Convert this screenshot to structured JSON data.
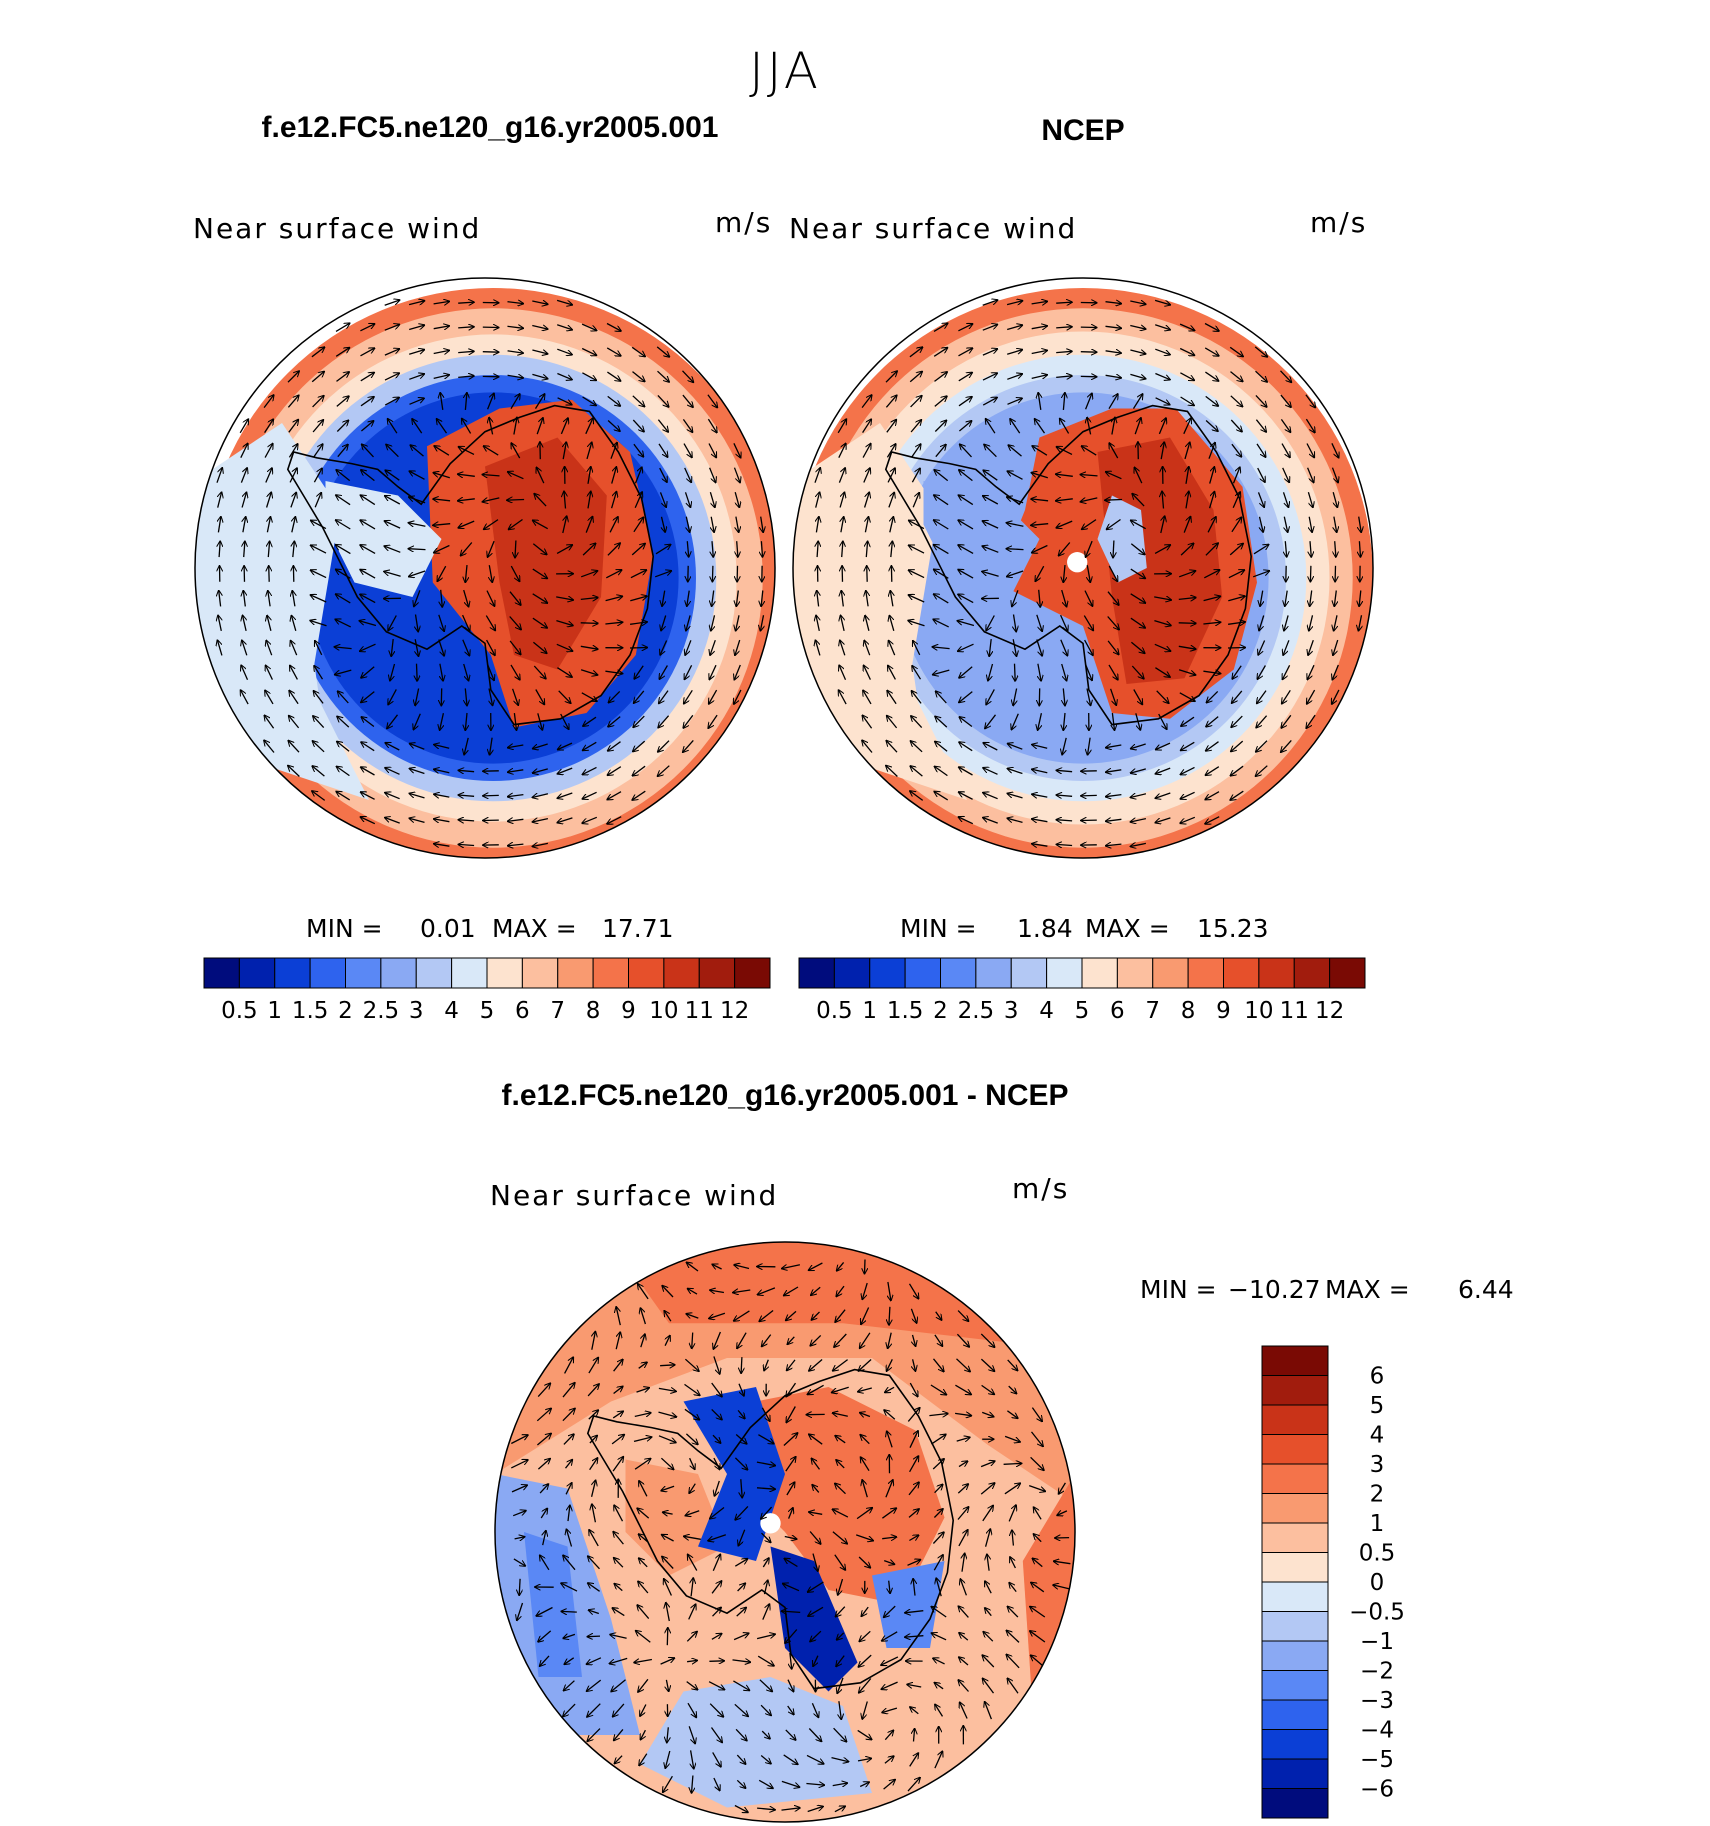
{
  "figure": {
    "season": "JJA",
    "model_title": "f.e12.FC5.ne120_g16.yr2005.001",
    "obs_title": "NCEP",
    "diff_title": "f.e12.FC5.ne120_g16.yr2005.001 - NCEP"
  },
  "panels": [
    {
      "id": "model",
      "variable": "Near surface wind",
      "units": "m/s",
      "stats": {
        "min_label": "MIN =",
        "min": "0.01",
        "max_label": "MAX =",
        "max": "17.71"
      },
      "pattern": "model"
    },
    {
      "id": "obs",
      "variable": "Near surface wind",
      "units": "m/s",
      "stats": {
        "min_label": "MIN =",
        "min": "1.84",
        "max_label": "MAX =",
        "max": "15.23"
      },
      "pattern": "obs"
    },
    {
      "id": "diff",
      "variable": "Near surface wind",
      "units": "m/s",
      "stats": {
        "min_label": "MIN =",
        "min": "−10.27",
        "max_label": "MAX =",
        "max": "6.44"
      },
      "pattern": "diff"
    }
  ],
  "colorbar_abs": {
    "labels": [
      "0.5",
      "1",
      "1.5",
      "2",
      "2.5",
      "3",
      "4",
      "5",
      "6",
      "7",
      "8",
      "9",
      "10",
      "11",
      "12"
    ],
    "colors": [
      "#000c7d",
      "#0021ae",
      "#0b3fd6",
      "#2e63ee",
      "#5a88f5",
      "#8aa9f3",
      "#b3c8f4",
      "#d9e8f8",
      "#fde3cf",
      "#fcbf9f",
      "#f99a70",
      "#f4734a",
      "#e6502b",
      "#c93318",
      "#a11c0d",
      "#7a0a04"
    ]
  },
  "colorbar_diff": {
    "labels": [
      "6",
      "5",
      "4",
      "3",
      "2",
      "1",
      "0.5",
      "0",
      "−0.5",
      "−1",
      "−2",
      "−3",
      "−4",
      "−5",
      "−6"
    ],
    "colors": [
      "#7a0a04",
      "#a11c0d",
      "#c93318",
      "#e6502b",
      "#f4734a",
      "#f99a70",
      "#fcbf9f",
      "#fde3cf",
      "#d9e8f8",
      "#b3c8f4",
      "#8aa9f3",
      "#5a88f5",
      "#2e63ee",
      "#0b3fd6",
      "#0021ae",
      "#000c7d"
    ]
  }
}
